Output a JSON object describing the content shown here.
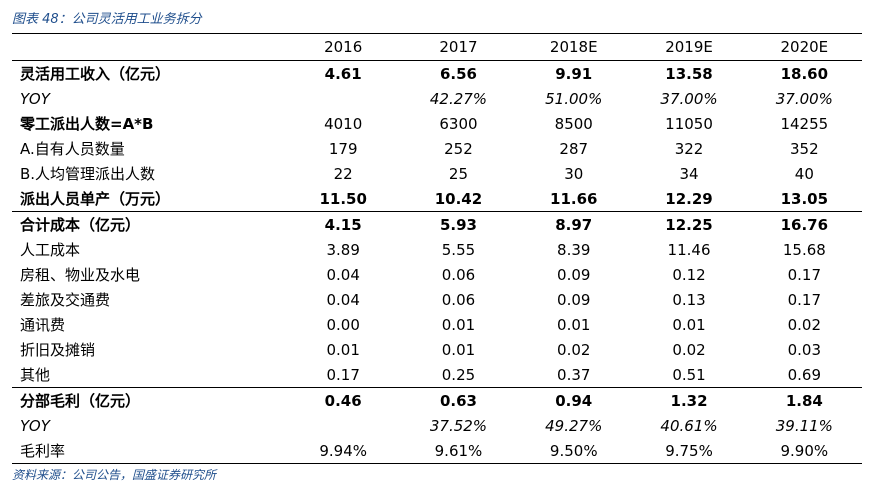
{
  "caption": "图表 48：公司灵活用工业务拆分",
  "table": {
    "columns": [
      "2016",
      "2017",
      "2018E",
      "2019E",
      "2020E"
    ],
    "rows": [
      {
        "label": "灵活用工收入（亿元）",
        "values": [
          "4.61",
          "6.56",
          "9.91",
          "13.58",
          "18.60"
        ]
      },
      {
        "label": "YOY",
        "values": [
          null,
          "42.27%",
          "51.00%",
          "37.00%",
          "37.00%"
        ]
      },
      {
        "label": "零工派出人数=A*B",
        "values": [
          "4010",
          "6300",
          "8500",
          "11050",
          "14255"
        ]
      },
      {
        "label": "A.自有人员数量",
        "values": [
          "179",
          "252",
          "287",
          "322",
          "352"
        ]
      },
      {
        "label": "B.人均管理派出人数",
        "values": [
          "22",
          "25",
          "30",
          "34",
          "40"
        ]
      },
      {
        "label": "派出人员单产（万元）",
        "values": [
          "11.50",
          "10.42",
          "11.66",
          "12.29",
          "13.05"
        ]
      },
      {
        "label": "合计成本（亿元）",
        "values": [
          "4.15",
          "5.93",
          "8.97",
          "12.25",
          "16.76"
        ]
      },
      {
        "label": "人工成本",
        "values": [
          "3.89",
          "5.55",
          "8.39",
          "11.46",
          "15.68"
        ]
      },
      {
        "label": "房租、物业及水电",
        "values": [
          "0.04",
          "0.06",
          "0.09",
          "0.12",
          "0.17"
        ]
      },
      {
        "label": "差旅及交通费",
        "values": [
          "0.04",
          "0.06",
          "0.09",
          "0.13",
          "0.17"
        ]
      },
      {
        "label": "通讯费",
        "values": [
          "0.00",
          "0.01",
          "0.01",
          "0.01",
          "0.02"
        ]
      },
      {
        "label": "折旧及摊销",
        "values": [
          "0.01",
          "0.01",
          "0.02",
          "0.02",
          "0.03"
        ]
      },
      {
        "label": "其他",
        "values": [
          "0.17",
          "0.25",
          "0.37",
          "0.51",
          "0.69"
        ]
      },
      {
        "label": "分部毛利（亿元）",
        "values": [
          "0.46",
          "0.63",
          "0.94",
          "1.32",
          "1.84"
        ]
      },
      {
        "label": "YOY",
        "values": [
          null,
          "37.52%",
          "49.27%",
          "40.61%",
          "39.11%"
        ]
      },
      {
        "label": "毛利率",
        "values": [
          "9.94%",
          "9.61%",
          "9.50%",
          "9.75%",
          "9.90%"
        ]
      }
    ]
  },
  "source": "资料来源：公司公告，国盛证券研究所"
}
